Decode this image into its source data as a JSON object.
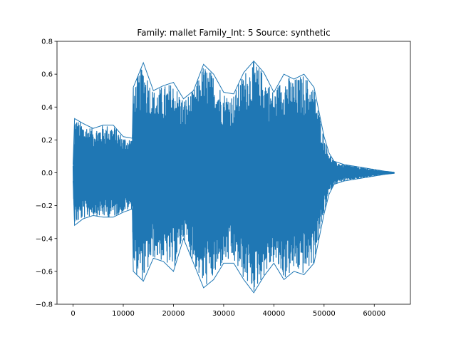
{
  "chart_data": {
    "type": "line",
    "title": "Family: mallet Family_Int: 5 Source: synthetic",
    "xlabel": "",
    "ylabel": "",
    "xlim": [
      -3200,
      67200
    ],
    "ylim": [
      -0.8,
      0.8
    ],
    "x_ticks": [
      0,
      10000,
      20000,
      30000,
      40000,
      50000,
      60000
    ],
    "x_tick_labels": [
      "0",
      "10000",
      "20000",
      "30000",
      "40000",
      "50000",
      "60000"
    ],
    "y_ticks": [
      -0.8,
      -0.6,
      -0.4,
      -0.2,
      0.0,
      0.2,
      0.4,
      0.6,
      0.8
    ],
    "y_tick_labels": [
      "−0.8",
      "−0.6",
      "−0.4",
      "−0.2",
      "0.0",
      "0.2",
      "0.4",
      "0.6",
      "0.8"
    ],
    "grid": false,
    "series": [
      {
        "color": "#1f77b4",
        "envelope_x": [
          0,
          300,
          2000,
          4000,
          6000,
          8000,
          10000,
          11800,
          12000,
          14000,
          16000,
          18000,
          20000,
          22000,
          24000,
          26000,
          28000,
          30000,
          32000,
          34000,
          36000,
          38000,
          40000,
          42000,
          44000,
          46000,
          48000,
          50000,
          51000,
          52000,
          54000,
          56000,
          58000,
          60000,
          62000,
          64000
        ],
        "envelope_upper": [
          0.05,
          0.33,
          0.3,
          0.27,
          0.29,
          0.29,
          0.22,
          0.21,
          0.52,
          0.67,
          0.5,
          0.53,
          0.55,
          0.45,
          0.5,
          0.66,
          0.6,
          0.49,
          0.48,
          0.61,
          0.68,
          0.61,
          0.49,
          0.6,
          0.57,
          0.6,
          0.52,
          0.22,
          0.12,
          0.07,
          0.05,
          0.04,
          0.03,
          0.02,
          0.01,
          0.003
        ],
        "envelope_lower": [
          -0.05,
          -0.32,
          -0.28,
          -0.26,
          -0.27,
          -0.27,
          -0.24,
          -0.22,
          -0.6,
          -0.66,
          -0.52,
          -0.54,
          -0.6,
          -0.4,
          -0.55,
          -0.7,
          -0.65,
          -0.55,
          -0.55,
          -0.65,
          -0.73,
          -0.63,
          -0.55,
          -0.65,
          -0.6,
          -0.62,
          -0.55,
          -0.25,
          -0.13,
          -0.07,
          -0.05,
          -0.04,
          -0.03,
          -0.02,
          -0.01,
          -0.003
        ]
      }
    ]
  }
}
